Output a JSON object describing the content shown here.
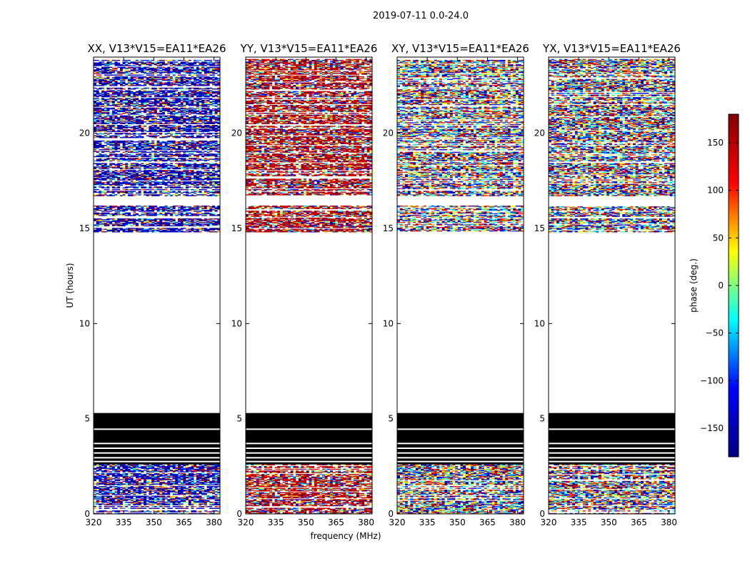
{
  "chart_data": {
    "type": "heatmap",
    "suptitle": "2019-07-11 0.0-24.0",
    "xlabel": "frequency (MHz)",
    "ylabel": "UT (hours)",
    "colorbar": {
      "label": "phase (deg.)",
      "range": [
        -180,
        180
      ],
      "ticks": [
        -150,
        -100,
        -50,
        0,
        50,
        100,
        150
      ],
      "tick_labels": [
        "−150",
        "−100",
        "−50",
        "0",
        "50",
        "100",
        "150"
      ],
      "colormap": "jet",
      "colormap_stops": [
        "#000080",
        "#0000ff",
        "#00ffff",
        "#ffff00",
        "#ff0000",
        "#800000"
      ]
    },
    "x_range": [
      320,
      383
    ],
    "x_ticks": [
      320,
      335,
      350,
      365,
      380
    ],
    "y_range": [
      0,
      24
    ],
    "y_ticks": [
      0,
      5,
      10,
      15,
      20
    ],
    "panels": [
      {
        "title": "XX, V13*V15=EA11*EA26",
        "dominant_phase": -150,
        "flagged_black": true
      },
      {
        "title": "YY, V13*V15=EA11*EA26",
        "dominant_phase": 150,
        "flagged_black": true
      },
      {
        "title": "XY, V13*V15=EA11*EA26",
        "dominant_phase": null,
        "flagged_black": true
      },
      {
        "title": "YX, V13*V15=EA11*EA26",
        "dominant_phase": null,
        "flagged_black": true
      }
    ],
    "data_ut_ranges": [
      [
        0,
        2.6
      ],
      [
        14.8,
        16.2
      ],
      [
        16.7,
        23.9
      ]
    ],
    "blank_ut_range": [
      5.3,
      14.8
    ],
    "flagged_ut_range": [
      2.6,
      5.3
    ]
  }
}
